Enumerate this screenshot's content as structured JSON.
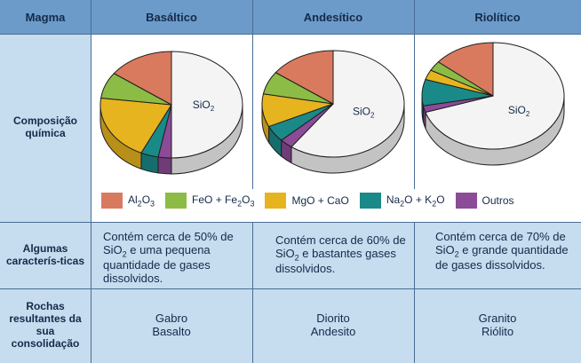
{
  "header": {
    "magma": "Magma",
    "basaltico": "Basáltico",
    "andesitico": "Andesítico",
    "riolitico": "Riolítico"
  },
  "rows": {
    "composicao": "Composição química",
    "caracteristicas": "Algumas caracterís-ticas",
    "rochas": "Rochas resultantes da sua consolidação"
  },
  "characteristics": {
    "basaltico": {
      "pre": "Contém cerca de 50% de SiO",
      "sub": "2",
      "post": " e uma pequena quantidade de gases dissolvidos."
    },
    "andesitico": {
      "pre": "Contém cerca de 60% de SiO",
      "sub": "2",
      "post": " e bastantes gases dissolvidos."
    },
    "riolitico": {
      "pre": "Contém cerca de 70% de SiO",
      "sub": "2",
      "post": " e grande quantidade de gases dissolvidos."
    }
  },
  "rocks": {
    "basaltico": {
      "line1": "Gabro",
      "line2": "Basalto"
    },
    "andesitico": {
      "line1": "Diorito",
      "line2": "Andesito"
    },
    "riolitico": {
      "line1": "Granito",
      "line2": "Riólito"
    }
  },
  "chart_data": {
    "type": "pie",
    "series_labels": [
      "Al2O3",
      "FeO + Fe2O3",
      "MgO + CaO",
      "Na2O + K2O",
      "Outros",
      "SiO2"
    ],
    "colors": {
      "Al2O3": "#d97a5e",
      "FeO + Fe2O3": "#8cbc45",
      "MgO + CaO": "#e6b41f",
      "Na2O + K2O": "#1a8a88",
      "Outros": "#8c4b96",
      "SiO2": "#f4f4f4"
    },
    "pies": [
      {
        "name": "Basáltico",
        "slices": [
          {
            "label": "SiO2",
            "value": 50
          },
          {
            "label": "Outros",
            "value": 3
          },
          {
            "label": "Na2O + K2O",
            "value": 4
          },
          {
            "label": "MgO + CaO",
            "value": 20
          },
          {
            "label": "FeO + Fe2O3",
            "value": 8
          },
          {
            "label": "Al2O3",
            "value": 15
          }
        ]
      },
      {
        "name": "Andesítico",
        "slices": [
          {
            "label": "SiO2",
            "value": 60
          },
          {
            "label": "Outros",
            "value": 3
          },
          {
            "label": "Na2O + K2O",
            "value": 5
          },
          {
            "label": "MgO + CaO",
            "value": 10
          },
          {
            "label": "FeO + Fe2O3",
            "value": 7
          },
          {
            "label": "Al2O3",
            "value": 15
          }
        ]
      },
      {
        "name": "Riolítico",
        "slices": [
          {
            "label": "SiO2",
            "value": 70
          },
          {
            "label": "Outros",
            "value": 2
          },
          {
            "label": "Na2O + K2O",
            "value": 8
          },
          {
            "label": "MgO + CaO",
            "value": 3
          },
          {
            "label": "FeO + Fe2O3",
            "value": 3
          },
          {
            "label": "Al2O3",
            "value": 14
          }
        ]
      }
    ]
  }
}
